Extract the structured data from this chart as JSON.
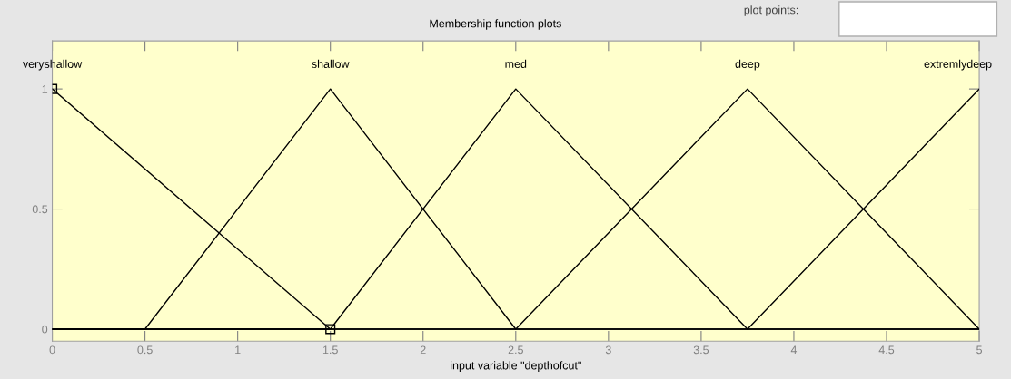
{
  "chart_data": {
    "type": "line",
    "title": "Membership function plots",
    "xlabel": "input variable \"depthofcut\"",
    "annotations": [
      "plot points:"
    ],
    "series": [
      {
        "name": "veryshallow",
        "color": "#000000",
        "x": [
          0,
          1.5
        ],
        "values": [
          1,
          0
        ],
        "marker": "square"
      },
      {
        "name": "shallow",
        "color": "#000000",
        "x": [
          0,
          0.5,
          1.5,
          2.5,
          5
        ],
        "values": [
          0,
          0,
          1,
          0,
          0
        ]
      },
      {
        "name": "med",
        "color": "#000000",
        "x": [
          0,
          1.5,
          2.5,
          3.75,
          5
        ],
        "values": [
          0,
          0,
          1,
          0,
          0
        ]
      },
      {
        "name": "deep",
        "color": "#000000",
        "x": [
          0,
          2.5,
          3.75,
          5
        ],
        "values": [
          0,
          0,
          1,
          0
        ]
      },
      {
        "name": "extremlydeep",
        "color": "#000000",
        "x": [
          0,
          3.75,
          5
        ],
        "values": [
          0,
          0,
          1
        ]
      }
    ],
    "xlim": [
      0,
      5
    ],
    "ylim": [
      -0.05,
      1.2
    ],
    "xticks": [
      0,
      0.5,
      1,
      1.5,
      2,
      2.5,
      3,
      3.5,
      4,
      4.5,
      5
    ],
    "yticks": [
      0,
      0.5,
      1
    ],
    "grid": false,
    "legend": false,
    "line_style": "solid"
  }
}
